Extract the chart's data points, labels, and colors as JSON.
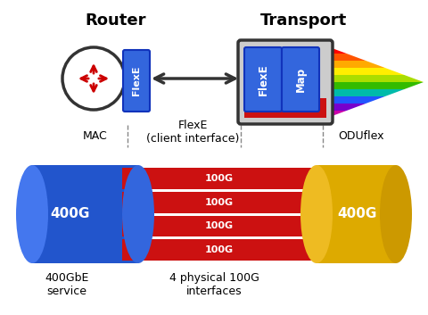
{
  "title_router": "Router",
  "title_transport": "Transport",
  "label_mac": "MAC",
  "label_flexe_interface": "FlexE\n(client interface)",
  "label_oduflex": "ODUflex",
  "label_400g_blue": "400G",
  "label_400g_gold": "400G",
  "label_100g": "100G",
  "label_service": "400GbE\nservice",
  "label_interfaces": "4 physical 100G\ninterfaces",
  "bg_color": "#ffffff",
  "blue_color": "#2255cc",
  "red_color": "#cc1111",
  "gold_color": "#ddaa00",
  "flexe_box_color": "#3366dd",
  "map_box_color": "#3366dd",
  "transport_bg": "#cccccc",
  "transport_border": "#333333",
  "rainbow_colors": [
    "#ff0000",
    "#ff5500",
    "#ffaa00",
    "#ffee00",
    "#aadd00",
    "#33bb00",
    "#00bbaa",
    "#2255ff",
    "#7700cc",
    "#cc00aa"
  ],
  "router_circle_color": "#333333",
  "arrow_color": "#333333",
  "red_strip_color": "#cc1111",
  "dashed_line_color": "#888888"
}
